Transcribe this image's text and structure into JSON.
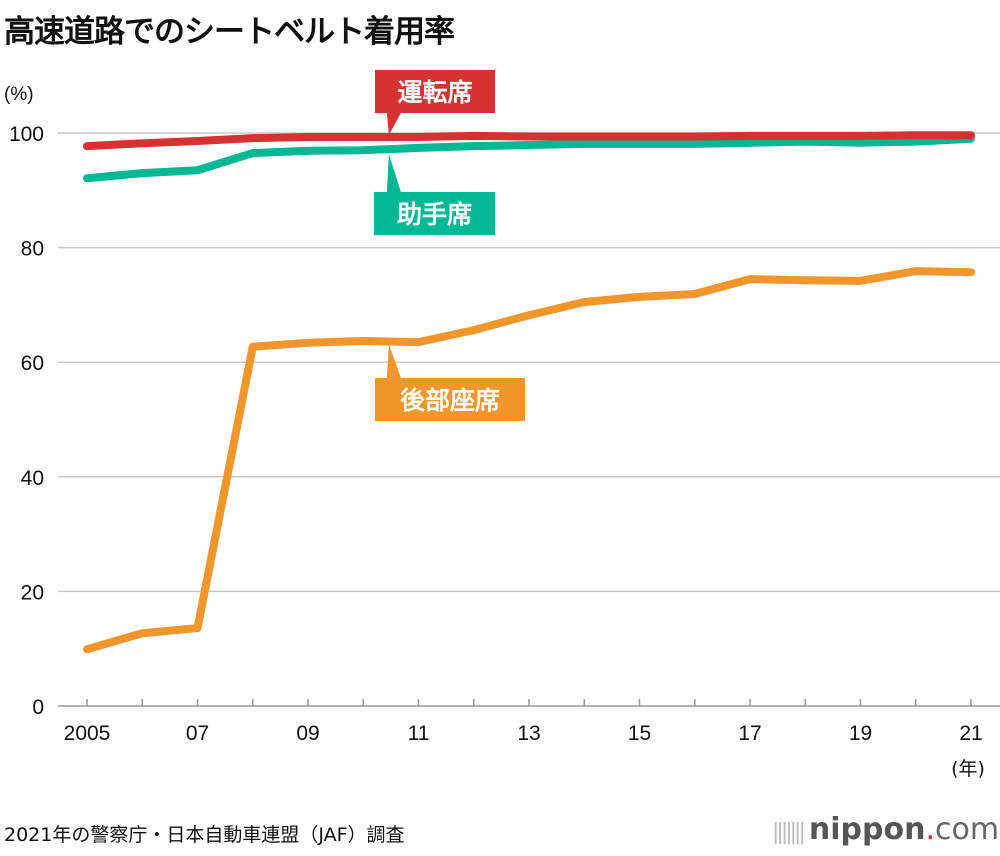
{
  "title": "高速道路でのシートベルト着用率",
  "source": "2021年の警察庁・日本自動車連盟（JAF）調査",
  "logo": {
    "brand": "nippon",
    "dot": ".",
    "suffix": "com"
  },
  "chart_data": {
    "type": "line",
    "title": "高速道路でのシートベルト着用率",
    "ylabel": "(%)",
    "xlabel": "(年)",
    "ylim": [
      0,
      100
    ],
    "yticks": [
      0,
      20,
      40,
      60,
      80,
      100
    ],
    "grid": true,
    "x": [
      2005,
      2006,
      2007,
      2008,
      2009,
      2010,
      2011,
      2012,
      2013,
      2014,
      2015,
      2016,
      2017,
      2018,
      2019,
      2020,
      2021
    ],
    "xtick_labels": [
      {
        "x": 2005,
        "label": "2005"
      },
      {
        "x": 2007,
        "label": "07"
      },
      {
        "x": 2009,
        "label": "09"
      },
      {
        "x": 2011,
        "label": "11"
      },
      {
        "x": 2013,
        "label": "13"
      },
      {
        "x": 2015,
        "label": "15"
      },
      {
        "x": 2017,
        "label": "17"
      },
      {
        "x": 2019,
        "label": "19"
      },
      {
        "x": 2021,
        "label": "21"
      }
    ],
    "series": [
      {
        "name": "運転席",
        "color": "#d63232",
        "label_year": 2010.5,
        "values": [
          97.7,
          98.2,
          98.6,
          99.1,
          99.3,
          99.3,
          99.3,
          99.5,
          99.4,
          99.4,
          99.4,
          99.4,
          99.5,
          99.5,
          99.5,
          99.6,
          99.6
        ]
      },
      {
        "name": "助手席",
        "color": "#00b894",
        "label_year": 2010.5,
        "values": [
          92.1,
          93.0,
          93.5,
          96.5,
          96.9,
          97.0,
          97.4,
          97.7,
          97.9,
          98.1,
          98.1,
          98.1,
          98.3,
          98.5,
          98.3,
          98.5,
          99.0
        ]
      },
      {
        "name": "後部座席",
        "color": "#f0962a",
        "label_year": 2010.5,
        "values": [
          9.9,
          12.7,
          13.6,
          62.7,
          63.4,
          63.7,
          63.5,
          65.6,
          68.2,
          70.5,
          71.4,
          71.9,
          74.5,
          74.3,
          74.2,
          75.9,
          75.7
        ]
      }
    ]
  }
}
